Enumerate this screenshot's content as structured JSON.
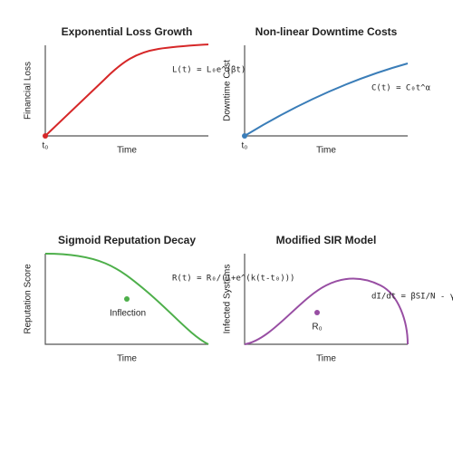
{
  "panels": [
    {
      "title": "Exponential Loss Growth",
      "x_label": "Time",
      "y_label": "Financial Loss",
      "formula": "L(t) = L₀e^(βt)",
      "point_label": "t₀"
    },
    {
      "title": "Non-linear Downtime Costs",
      "x_label": "Time",
      "y_label": "Downtime Cost",
      "formula": "C(t) = C₀t^α",
      "point_label": "t₀"
    },
    {
      "title": "Sigmoid Reputation Decay",
      "x_label": "Time",
      "y_label": "Reputation Score",
      "formula": "R(t) = R₀/(1+e^(k(t-t₀)))",
      "point_label": "Inflection"
    },
    {
      "title": "Modified SIR Model",
      "x_label": "Time",
      "y_label": "Infected Systems",
      "formula": "dI/dt = βSI/N - γI",
      "point_label": "R₀"
    }
  ]
}
